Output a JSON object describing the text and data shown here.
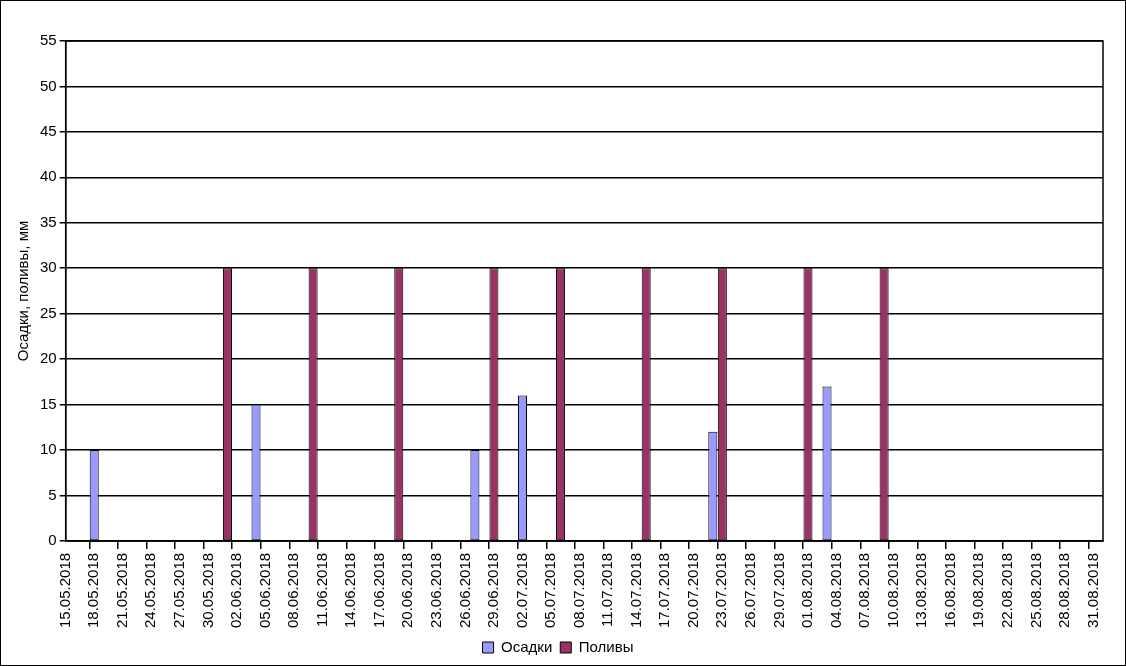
{
  "chart_data": {
    "type": "bar",
    "ylabel": "Осадки, поливы, мм",
    "categories": [
      "15.05.2018",
      null,
      null,
      "18.05.2018",
      null,
      null,
      "21.05.2018",
      null,
      null,
      "24.05.2018",
      null,
      null,
      "27.05.2018",
      null,
      null,
      "30.05.2018",
      null,
      null,
      "02.06.2018",
      null,
      null,
      "05.06.2018",
      null,
      null,
      "08.06.2018",
      null,
      null,
      "11.06.2018",
      null,
      null,
      "14.06.2018",
      null,
      null,
      "17.06.2018",
      null,
      null,
      "20.06.2018",
      null,
      null,
      "23.06.2018",
      null,
      null,
      "26.06.2018",
      null,
      null,
      "29.06.2018",
      null,
      null,
      "02.07.2018",
      null,
      null,
      "05.07.2018",
      null,
      null,
      "08.07.2018",
      null,
      null,
      "11.07.2018",
      null,
      null,
      "14.07.2018",
      null,
      null,
      "17.07.2018",
      null,
      null,
      "20.07.2018",
      null,
      null,
      "23.07.2018",
      null,
      null,
      "26.07.2018",
      null,
      null,
      "29.07.2018",
      null,
      null,
      "01.08.2018",
      null,
      null,
      "04.08.2018",
      null,
      null,
      "07.08.2018",
      null,
      null,
      "10.08.2018",
      null,
      null,
      "13.08.2018",
      null,
      null,
      "16.08.2018",
      null,
      null,
      "19.08.2018",
      null,
      null,
      "22.08.2018",
      null,
      null,
      "25.08.2018",
      null,
      null,
      "28.08.2018",
      null,
      null,
      "31.08.2018",
      null
    ],
    "series": [
      {
        "name": "Осадки",
        "color": "#9999ff",
        "values": [
          null,
          null,
          null,
          10,
          null,
          null,
          null,
          null,
          null,
          null,
          null,
          null,
          null,
          null,
          null,
          null,
          null,
          null,
          null,
          null,
          15,
          null,
          null,
          null,
          null,
          null,
          null,
          null,
          null,
          null,
          null,
          null,
          null,
          null,
          null,
          null,
          null,
          null,
          null,
          null,
          null,
          null,
          null,
          10,
          null,
          null,
          null,
          null,
          16,
          null,
          null,
          null,
          null,
          null,
          null,
          null,
          null,
          null,
          null,
          null,
          null,
          null,
          null,
          null,
          null,
          null,
          null,
          null,
          12,
          null,
          null,
          null,
          null,
          null,
          null,
          null,
          null,
          null,
          null,
          null,
          17,
          null,
          null,
          null,
          null,
          null,
          null,
          null,
          null,
          null,
          null,
          null,
          null,
          null,
          null,
          null,
          null,
          null,
          null,
          null,
          null,
          null,
          null,
          null,
          null,
          null,
          null,
          null,
          null,
          null
        ]
      },
      {
        "name": "Поливы",
        "color": "#993366",
        "values": [
          null,
          null,
          null,
          null,
          null,
          null,
          null,
          null,
          null,
          null,
          null,
          null,
          null,
          null,
          null,
          null,
          null,
          30,
          null,
          null,
          null,
          null,
          null,
          null,
          null,
          null,
          30,
          null,
          null,
          null,
          null,
          null,
          null,
          null,
          null,
          30,
          null,
          null,
          null,
          null,
          null,
          null,
          null,
          null,
          null,
          30,
          null,
          null,
          null,
          null,
          null,
          null,
          30,
          null,
          null,
          null,
          null,
          null,
          null,
          null,
          null,
          30,
          null,
          null,
          null,
          null,
          null,
          null,
          null,
          30,
          null,
          null,
          null,
          null,
          null,
          null,
          null,
          null,
          30,
          null,
          null,
          null,
          null,
          null,
          null,
          null,
          30,
          null,
          null,
          null,
          null,
          null,
          null,
          null,
          null,
          null,
          null,
          null,
          null,
          null,
          null,
          null,
          null,
          null,
          null,
          null,
          null,
          null,
          null,
          null
        ]
      }
    ],
    "ylim": [
      0,
      55
    ],
    "yticks": [
      0,
      5,
      10,
      15,
      20,
      25,
      30,
      35,
      40,
      45,
      50,
      55
    ],
    "grid": "y",
    "legend": "bottom"
  }
}
